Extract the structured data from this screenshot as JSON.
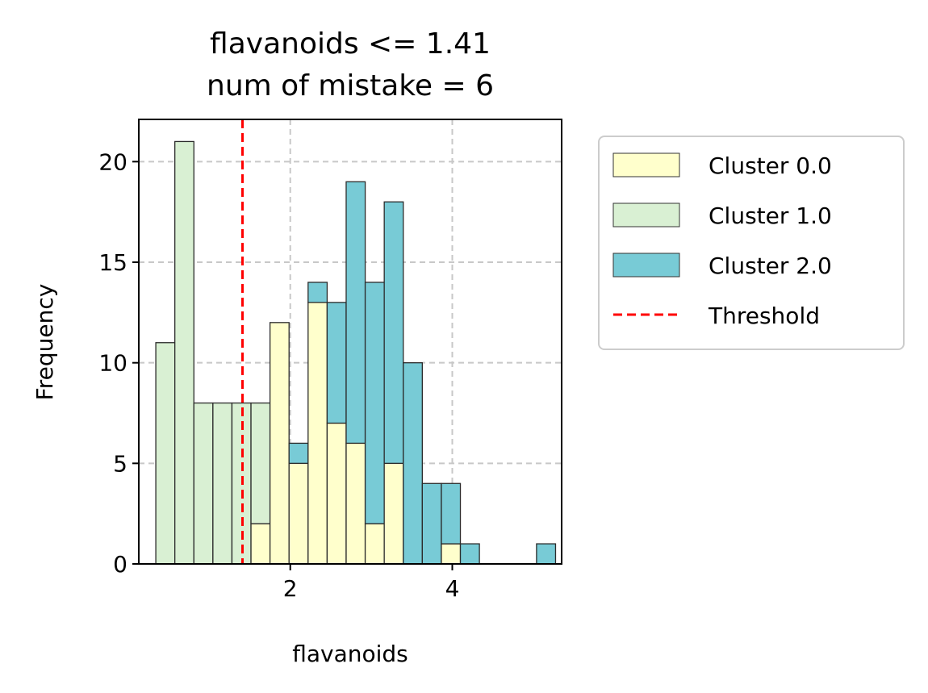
{
  "chart_data": {
    "type": "bar",
    "title": [
      "flavanoids <= 1.41",
      "num of mistake = 6"
    ],
    "xlabel": "flavanoids",
    "ylabel": "Frequency",
    "xlim": [
      0.13,
      5.35
    ],
    "ylim": [
      0,
      22.1
    ],
    "xticks": [
      2,
      4
    ],
    "yticks": [
      0,
      5,
      10,
      15,
      20
    ],
    "grid": true,
    "stacked": true,
    "bin_start": 0.34,
    "bin_width": 0.235,
    "series": [
      {
        "name": "Cluster 0.0",
        "color": "#ffffcc",
        "values": [
          0,
          0,
          0,
          0,
          0,
          2,
          12,
          5,
          13,
          7,
          6,
          2,
          5,
          0,
          0,
          1,
          0,
          0,
          0,
          0,
          0
        ]
      },
      {
        "name": "Cluster 1.0",
        "color": "#d9f0d3",
        "values": [
          11,
          21,
          8,
          8,
          8,
          6,
          0,
          0,
          0,
          0,
          0,
          0,
          0,
          0,
          0,
          0,
          0,
          0,
          0,
          0,
          0
        ]
      },
      {
        "name": "Cluster 2.0",
        "color": "#78cbd6",
        "values": [
          0,
          0,
          0,
          0,
          0,
          0,
          0,
          1,
          1,
          6,
          13,
          12,
          13,
          10,
          4,
          3,
          1,
          0,
          0,
          0,
          1
        ]
      }
    ],
    "threshold": {
      "name": "Threshold",
      "value": 1.41,
      "color": "#ff0000"
    },
    "legend": "outside-right"
  }
}
